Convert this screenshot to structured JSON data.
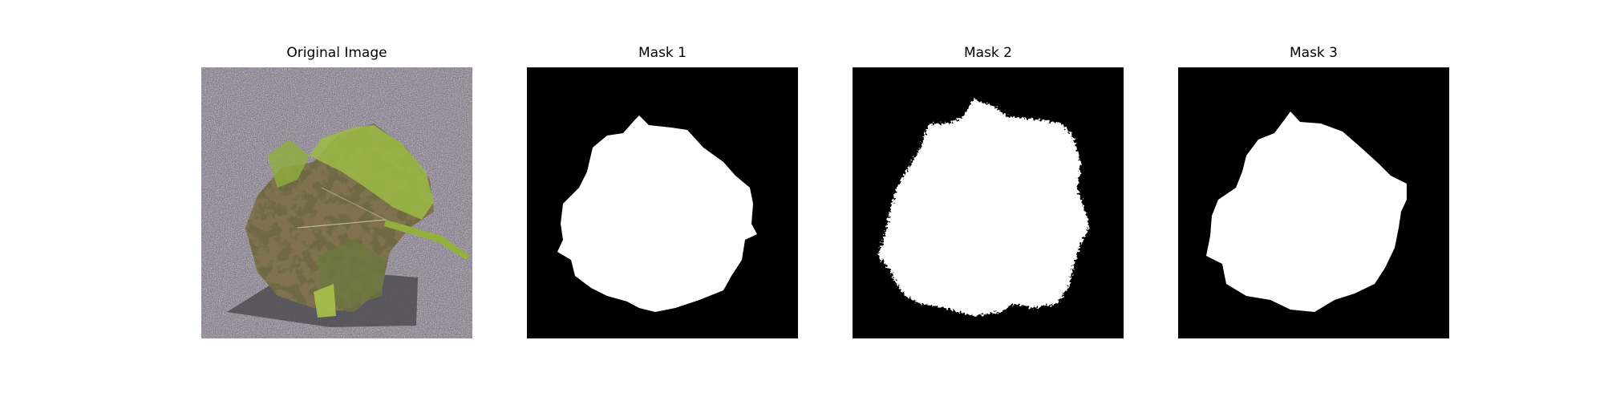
{
  "figure": {
    "panels": [
      {
        "title": "Original Image",
        "content": "leaf-photo"
      },
      {
        "title": "Mask 1",
        "content": "mask"
      },
      {
        "title": "Mask 2",
        "content": "mask"
      },
      {
        "title": "Mask 3",
        "content": "mask"
      }
    ]
  },
  "colors": {
    "background": "#ffffff",
    "mask_foreground": "#ffffff",
    "mask_background": "#000000",
    "leaf_green": "#8fae3c",
    "leaf_brown": "#5a4a2c",
    "ground_gray": "#8e8a8f"
  }
}
